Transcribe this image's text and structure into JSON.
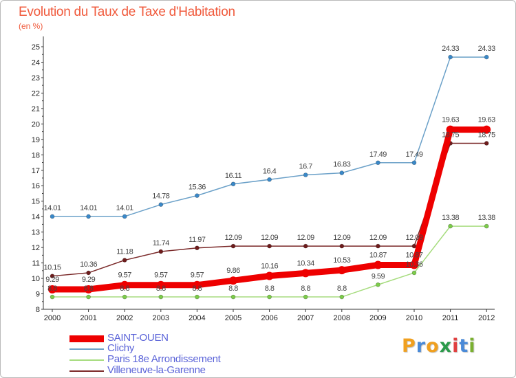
{
  "title": "Evolution du Taux de Taxe d'Habitation",
  "subtitle": "(en %)",
  "logo": {
    "text": "Proxiti",
    "letters": [
      "P",
      "r",
      "o",
      "x",
      "i",
      "t",
      "i"
    ],
    "colors": [
      "#f0a020",
      "#4a8ad8",
      "#f0a020",
      "#2a9a4a",
      "#e04040",
      "#4a8ad8",
      "#7ab030"
    ]
  },
  "chart_data": {
    "type": "line",
    "title": "Evolution du Taux de Taxe d'Habitation",
    "subtitle": "(en %)",
    "xlabel": "",
    "ylabel": "",
    "categories": [
      "2000",
      "2001",
      "2002",
      "2003",
      "2004",
      "2005",
      "2006",
      "2007",
      "2008",
      "2009",
      "2010",
      "2011",
      "2012"
    ],
    "ylim": [
      8,
      25
    ],
    "yticks": [
      "8",
      "9",
      "10",
      "11",
      "12",
      "13",
      "14",
      "15",
      "16",
      "17",
      "18",
      "19",
      "20",
      "21",
      "22",
      "23",
      "24",
      "25"
    ],
    "grid": false,
    "legend_position": "bottom-left",
    "series": [
      {
        "name": "SAINT-OUEN",
        "color": "#ee0000",
        "values": [
          9.29,
          9.29,
          9.57,
          9.57,
          9.57,
          9.86,
          10.16,
          10.34,
          10.53,
          10.87,
          10.87,
          19.63,
          19.63
        ],
        "labels": [
          "9.29",
          "9.29",
          "9.57",
          "9.57",
          "9.57",
          "9.86",
          "10.16",
          "10.34",
          "10.53",
          "10.87",
          "10.87",
          "19.63",
          "19.63"
        ]
      },
      {
        "name": "Clichy",
        "color": "#6aa0c8",
        "values": [
          14.01,
          14.01,
          14.01,
          14.78,
          15.36,
          16.11,
          16.4,
          16.7,
          16.83,
          17.49,
          17.49,
          24.33,
          24.33
        ],
        "labels": [
          "14.01",
          "14.01",
          "14.01",
          "14.78",
          "15.36",
          "16.11",
          "16.4",
          "16.7",
          "16.83",
          "17.49",
          "17.49",
          "24.33",
          "24.33"
        ]
      },
      {
        "name": "Paris 18e  Arrondissement",
        "color": "#a6dc7e",
        "values": [
          8.8,
          8.8,
          8.8,
          8.8,
          8.8,
          8.8,
          8.8,
          8.8,
          8.8,
          9.59,
          10.36,
          13.38,
          13.38
        ],
        "labels": [
          "8.8",
          "8.8",
          "8.8",
          "8.8",
          "8.8",
          "8.8",
          "8.8",
          "8.8",
          "8.8",
          "9.59",
          "10.36",
          "13.38",
          "13.38"
        ]
      },
      {
        "name": "Villeneuve-la-Garenne",
        "color": "#7a2828",
        "values": [
          10.15,
          10.36,
          11.18,
          11.74,
          11.97,
          12.09,
          12.09,
          12.09,
          12.09,
          12.09,
          12.09,
          18.75,
          18.75
        ],
        "labels": [
          "10.15",
          "10.36",
          "11.18",
          "11.74",
          "11.97",
          "12.09",
          "12.09",
          "12.09",
          "12.09",
          "12.09",
          "12.09",
          "18.75",
          "18.75"
        ]
      }
    ]
  }
}
